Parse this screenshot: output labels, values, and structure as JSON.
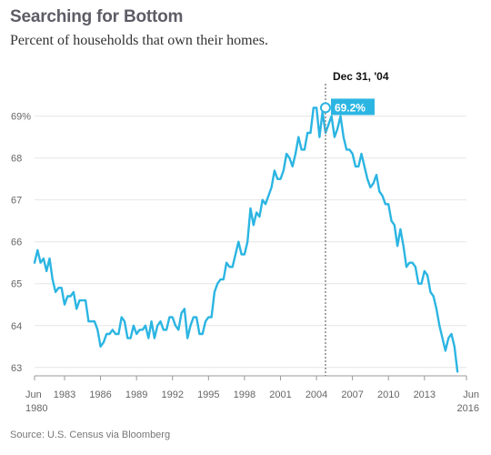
{
  "title": "Searching for Bottom",
  "subtitle": "Percent of households that own their homes.",
  "source": "Source: U.S. Census via Bloomberg",
  "colors": {
    "line": "#2bb5e2",
    "grid": "#e6e6e6",
    "annotation_bg": "#2bb5e2"
  },
  "chart_data": {
    "type": "line",
    "x_start": 1980.5,
    "x_step": 0.25,
    "ylim": [
      62.8,
      69.6
    ],
    "xlim": [
      1980.5,
      2016.5
    ],
    "grid": true,
    "y_ticks": [
      63,
      64,
      65,
      66,
      67,
      68,
      69
    ],
    "y_tick_labels": [
      "63",
      "64",
      "65",
      "66",
      "67",
      "68",
      "69%"
    ],
    "x_ticks": [
      {
        "x": 1980.5,
        "label": "Jun",
        "label2": "1980"
      },
      {
        "x": 1983,
        "label": "1983"
      },
      {
        "x": 1986,
        "label": "1986"
      },
      {
        "x": 1989,
        "label": "1989"
      },
      {
        "x": 1992,
        "label": "1992"
      },
      {
        "x": 1995,
        "label": "1995"
      },
      {
        "x": 1998,
        "label": "1998"
      },
      {
        "x": 2001,
        "label": "2001"
      },
      {
        "x": 2004,
        "label": "2004"
      },
      {
        "x": 2007,
        "label": "2007"
      },
      {
        "x": 2010,
        "label": "2010"
      },
      {
        "x": 2013,
        "label": "2013"
      },
      {
        "x": 2016.5,
        "label": "Jun",
        "label2": "2016"
      }
    ],
    "annotation": {
      "x": 2004.75,
      "y": 69.2,
      "date_label": "Dec 31, '04",
      "value_label": "69.2%"
    },
    "values": [
      65.5,
      65.8,
      65.5,
      65.6,
      65.3,
      65.6,
      65.1,
      64.8,
      64.9,
      64.9,
      64.5,
      64.7,
      64.7,
      64.8,
      64.4,
      64.6,
      64.6,
      64.6,
      64.1,
      64.1,
      64.1,
      63.9,
      63.5,
      63.6,
      63.8,
      63.8,
      63.9,
      63.8,
      63.8,
      64.2,
      64.1,
      63.7,
      63.7,
      64.0,
      63.8,
      63.9,
      63.9,
      64.0,
      63.7,
      64.1,
      63.7,
      64.0,
      64.1,
      63.9,
      63.9,
      64.2,
      64.2,
      64.0,
      63.9,
      64.3,
      64.4,
      63.7,
      64.0,
      64.2,
      64.2,
      63.8,
      63.8,
      64.1,
      64.2,
      64.2,
      64.8,
      65.0,
      65.1,
      65.1,
      65.5,
      65.4,
      65.4,
      65.7,
      66.0,
      65.7,
      65.7,
      66.0,
      66.8,
      66.4,
      66.7,
      66.6,
      67.0,
      66.9,
      67.1,
      67.3,
      67.7,
      67.5,
      67.5,
      67.7,
      68.1,
      68.0,
      67.8,
      68.1,
      68.5,
      68.2,
      68.2,
      68.6,
      68.6,
      69.2,
      69.2,
      68.5,
      69.1,
      68.6,
      68.8,
      69.0,
      68.5,
      68.7,
      69.0,
      68.5,
      68.2,
      68.2,
      68.1,
      67.8,
      67.8,
      68.1,
      67.8,
      67.5,
      67.3,
      67.4,
      67.6,
      67.2,
      67.1,
      66.9,
      66.9,
      66.5,
      66.4,
      65.9,
      66.3,
      65.9,
      65.4,
      65.5,
      65.5,
      65.4,
      65.0,
      65.0,
      65.3,
      65.2,
      64.8,
      64.7,
      64.4,
      64.0,
      63.7,
      63.4,
      63.7,
      63.8,
      63.5,
      62.9
    ]
  }
}
